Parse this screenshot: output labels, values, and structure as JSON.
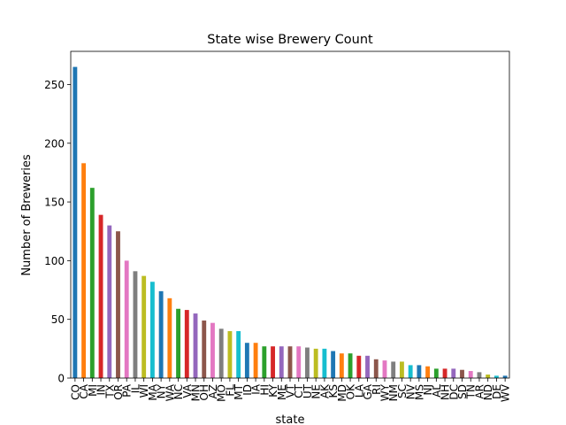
{
  "chart_data": {
    "type": "bar",
    "title": "State wise Brewery Count",
    "xlabel": "state",
    "ylabel": "Number of Breweries",
    "categories": [
      "CO",
      "CA",
      "MI",
      "IN",
      "TX",
      "OR",
      "PA",
      "IL",
      "WI",
      "MA",
      "NY",
      "WA",
      "NC",
      "VA",
      "MN",
      "OH",
      "AZ",
      "MO",
      "FL",
      "MT",
      "ID",
      "IA",
      "HI",
      "KY",
      "ME",
      "VT",
      "CT",
      "UT",
      "NE",
      "AK",
      "KS",
      "MD",
      "OK",
      "LA",
      "GA",
      "RI",
      "WY",
      "NM",
      "SC",
      "NV",
      "MS",
      "NJ",
      "AL",
      "NH",
      "DC",
      "SD",
      "TN",
      "AR",
      "ND",
      "DE",
      "WV"
    ],
    "values": [
      265,
      183,
      162,
      139,
      130,
      125,
      100,
      91,
      87,
      82,
      74,
      68,
      59,
      58,
      55,
      49,
      47,
      42,
      40,
      40,
      30,
      30,
      27,
      27,
      27,
      27,
      27,
      26,
      25,
      25,
      23,
      21,
      21,
      19,
      19,
      16,
      15,
      14,
      14,
      11,
      11,
      10,
      8,
      8,
      8,
      7,
      6,
      5,
      3,
      2,
      2
    ],
    "colors": [
      "#1f77b4",
      "#ff7f0e",
      "#2ca02c",
      "#d62728",
      "#9467bd",
      "#8c564b",
      "#e377c2",
      "#7f7f7f",
      "#bcbd22",
      "#17becf"
    ],
    "ylim": [
      0,
      278.25
    ],
    "yticks": [
      0,
      50,
      100,
      150,
      200,
      250
    ]
  }
}
